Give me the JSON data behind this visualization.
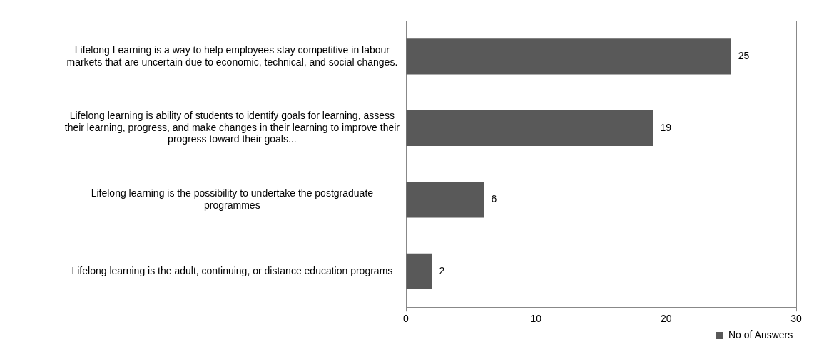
{
  "chart_data": {
    "type": "bar",
    "orientation": "horizontal",
    "categories": [
      "Lifelong Learning is a way to help employees stay competitive in labour markets that are uncertain due to economic, technical, and social changes.",
      "Lifelong learning is ability of students to identify goals for learning, assess their learning, progress, and make changes in their learning to improve their progress toward their goals...",
      "Lifelong learning is the possibility to undertake the postgraduate programmes",
      "Lifelong learning is the adult, continuing, or distance education programs"
    ],
    "series": [
      {
        "name": "No of Answers",
        "color": "#595959",
        "values": [
          25,
          19,
          6,
          2
        ]
      }
    ],
    "xlim": [
      0,
      30
    ],
    "xticks": [
      0,
      10,
      20,
      30
    ],
    "grid": "x",
    "legend": "bottom",
    "data_labels": true
  }
}
